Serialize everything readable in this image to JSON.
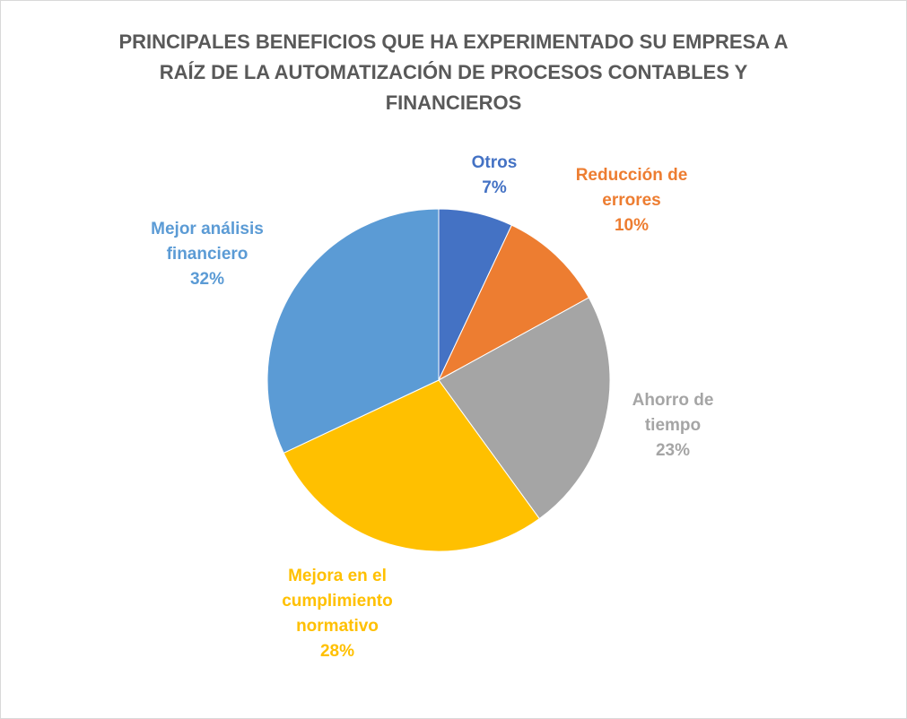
{
  "chart_data": {
    "type": "pie",
    "title": "PRINCIPALES BENEFICIOS QUE HA EXPERIMENTADO SU EMPRESA A RAÍZ DE LA AUTOMATIZACIÓN DE PROCESOS CONTABLES Y FINANCIEROS",
    "categories": [
      "Otros",
      "Reducción de errores",
      "Ahorro de tiempo",
      "Mejora en el cumplimiento normativo",
      "Mejor análisis financiero"
    ],
    "values": [
      7,
      10,
      23,
      28,
      32
    ],
    "value_labels": [
      "7%",
      "10%",
      "23%",
      "28%",
      "32%"
    ],
    "colors": [
      "#4472c4",
      "#ed7d31",
      "#a5a5a5",
      "#ffc000",
      "#5b9bd5"
    ]
  }
}
